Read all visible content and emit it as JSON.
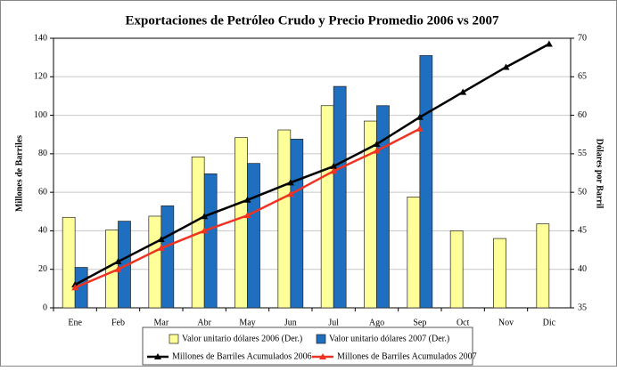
{
  "chart_data": {
    "type": "bar",
    "title": "Exportaciones de Petróleo Crudo y Precio Promedio 2006 vs 2007",
    "y_label": "Millones de Barriles",
    "y2_label": "Dólares por Barril",
    "categories": [
      "Ene",
      "Feb",
      "Mar",
      "Abr",
      "May",
      "Jun",
      "Jul",
      "Ago",
      "Sep",
      "Oct",
      "Nov",
      "Dic"
    ],
    "ylim": [
      0,
      140
    ],
    "yticks": [
      0,
      20,
      40,
      60,
      80,
      100,
      120,
      140
    ],
    "y2lim": [
      35,
      70
    ],
    "y2ticks": [
      35,
      40,
      45,
      50,
      55,
      60,
      65,
      70
    ],
    "grid": true,
    "series": [
      {
        "name": "Valor unitario dólares 2006 (Der.)",
        "type": "bar",
        "axis": "y2",
        "color": "#ffff99",
        "values": [
          46.75,
          45.1,
          46.9,
          54.6,
          57.1,
          58.1,
          61.25,
          59.25,
          49.4,
          45,
          44,
          45.9
        ]
      },
      {
        "name": "Valor unitario dólares 2007 (Der.)",
        "type": "bar",
        "axis": "y2",
        "color": "#1f6fc0",
        "values": [
          40.25,
          46.25,
          48.25,
          52.4,
          53.75,
          56.9,
          63.75,
          61.25,
          67.75,
          null,
          null,
          null
        ]
      },
      {
        "name": "Millones de Barriles Acumulados 2006",
        "type": "line",
        "color": "#000000",
        "values": [
          12,
          24,
          35.5,
          47.5,
          56,
          65,
          73.5,
          85,
          99,
          112,
          125,
          137
        ]
      },
      {
        "name": "Millones de Barriles Acumulados 2007",
        "type": "line",
        "color": "#ee3322",
        "values": [
          10.5,
          20,
          31,
          40,
          48,
          59,
          71,
          81.5,
          93,
          null,
          null,
          null
        ]
      }
    ]
  }
}
